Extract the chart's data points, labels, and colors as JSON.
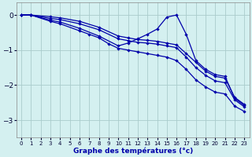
{
  "xlabel": "Graphe des températures (°c)",
  "background_color": "#d4f0f0",
  "line_color": "#0000aa",
  "grid_color": "#aacccc",
  "xlim": [
    -0.5,
    23.5
  ],
  "ylim": [
    -3.5,
    0.35
  ],
  "xticks": [
    0,
    1,
    2,
    3,
    4,
    5,
    6,
    7,
    8,
    9,
    10,
    11,
    12,
    13,
    14,
    15,
    16,
    17,
    18,
    19,
    20,
    21,
    22,
    23
  ],
  "yticks": [
    0,
    -1,
    -2,
    -3
  ],
  "series": [
    {
      "x": [
        0,
        1,
        3,
        4,
        6,
        8,
        10,
        11,
        12,
        13,
        14,
        15,
        16,
        17,
        18,
        19,
        20,
        21,
        22,
        23
      ],
      "y": [
        0,
        0,
        -0.05,
        -0.08,
        -0.18,
        -0.35,
        -0.6,
        -0.65,
        -0.7,
        -0.72,
        -0.75,
        -0.8,
        -0.85,
        -1.1,
        -1.35,
        -1.6,
        -1.75,
        -1.8,
        -2.35,
        -2.55
      ]
    },
    {
      "x": [
        0,
        1,
        3,
        4,
        6,
        8,
        10,
        11,
        12,
        13,
        14,
        15,
        16,
        17,
        18,
        19,
        20,
        21,
        22,
        23
      ],
      "y": [
        0,
        0,
        -0.1,
        -0.13,
        -0.25,
        -0.42,
        -0.68,
        -0.73,
        -0.78,
        -0.8,
        -0.83,
        -0.88,
        -0.93,
        -1.2,
        -1.5,
        -1.72,
        -1.88,
        -1.93,
        -2.42,
        -2.62
      ]
    },
    {
      "x": [
        0,
        1,
        3,
        4,
        6,
        8,
        10,
        11,
        12,
        13,
        14,
        15,
        16,
        17,
        18,
        19,
        20,
        21,
        22,
        23
      ],
      "y": [
        0,
        0,
        -0.15,
        -0.2,
        -0.38,
        -0.6,
        -0.88,
        -0.8,
        -0.68,
        -0.55,
        -0.4,
        -0.06,
        0.0,
        -0.55,
        -1.3,
        -1.55,
        -1.7,
        -1.75,
        -2.38,
        -2.58
      ]
    },
    {
      "x": [
        0,
        1,
        3,
        4,
        6,
        7,
        8,
        9,
        10,
        11,
        12,
        13,
        14,
        15,
        16,
        17,
        18,
        19,
        20,
        21,
        22,
        23
      ],
      "y": [
        0,
        0,
        -0.18,
        -0.25,
        -0.45,
        -0.55,
        -0.65,
        -0.82,
        -0.95,
        -1.0,
        -1.05,
        -1.1,
        -1.15,
        -1.2,
        -1.3,
        -1.55,
        -1.85,
        -2.05,
        -2.2,
        -2.25,
        -2.6,
        -2.75
      ]
    }
  ]
}
